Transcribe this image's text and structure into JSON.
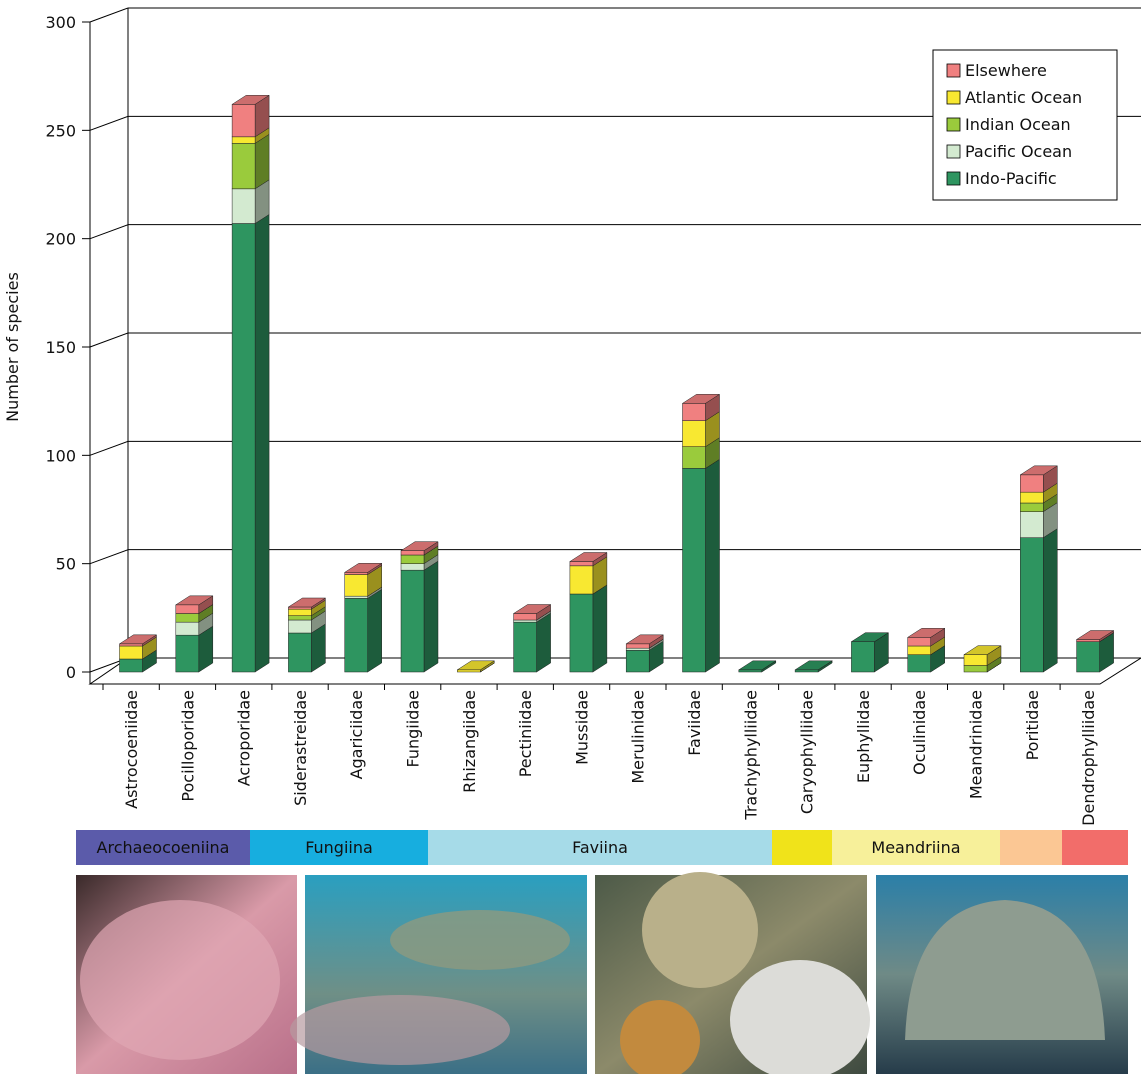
{
  "chart_data": {
    "type": "bar",
    "stacked": true,
    "y_label": "Number of species",
    "categories": [
      "Astrocoeniidae",
      "Pocilloporidae",
      "Acroporidae",
      "Siderastreidae",
      "Agariciidae",
      "Fungiidae",
      "Rhizangiidae",
      "Pectiniidae",
      "Mussidae",
      "Merulinidae",
      "Faviidae",
      "Trachyphylliidae",
      "Caryophylliidae",
      "Euphyllidae",
      "Oculinidae",
      "Meandrinidae",
      "Poritidae",
      "Dendrophylliidae"
    ],
    "series": [
      {
        "name": "Indo-Pacific",
        "color": "#2e9560",
        "values": [
          6,
          17,
          207,
          18,
          34,
          47,
          0,
          23,
          36,
          10,
          94,
          1,
          1,
          14,
          8,
          0,
          62,
          14
        ]
      },
      {
        "name": "Pacific Ocean",
        "color": "#d3ead0",
        "values": [
          0,
          6,
          16,
          6,
          1,
          3,
          0,
          1,
          0,
          1,
          0,
          0,
          0,
          0,
          0,
          0,
          12,
          0
        ]
      },
      {
        "name": "Indian Ocean",
        "color": "#9acb3c",
        "values": [
          0,
          4,
          21,
          2,
          0,
          4,
          0,
          0,
          0,
          0,
          10,
          0,
          0,
          0,
          0,
          3,
          4,
          0
        ]
      },
      {
        "name": "Atlantic Ocean",
        "color": "#f8e831",
        "values": [
          6,
          0,
          3,
          3,
          10,
          0,
          1,
          0,
          13,
          0,
          12,
          0,
          0,
          0,
          4,
          5,
          5,
          0
        ]
      },
      {
        "name": "Elsewhere",
        "color": "#f08080",
        "values": [
          1,
          4,
          15,
          1,
          1,
          2,
          0,
          3,
          2,
          2,
          8,
          0,
          0,
          0,
          4,
          0,
          8,
          1
        ]
      }
    ],
    "ylim": [
      0,
      300
    ],
    "yticks": [
      0,
      50,
      100,
      150,
      200,
      250,
      300
    ],
    "grid": true,
    "legend": "top-right",
    "suborders": [
      {
        "label": "Archaeocoeniina",
        "color": "#5b5baa"
      },
      {
        "label": "Fungiina",
        "color": "#17aedf"
      },
      {
        "label": "Faviina",
        "color": "#a6dbe8"
      },
      {
        "color": "#f0e31a"
      },
      {
        "label": "Meandriina",
        "color": "#f7f09a"
      },
      {
        "color": "#fbc794"
      },
      {
        "color": "#f26d6a"
      }
    ]
  }
}
